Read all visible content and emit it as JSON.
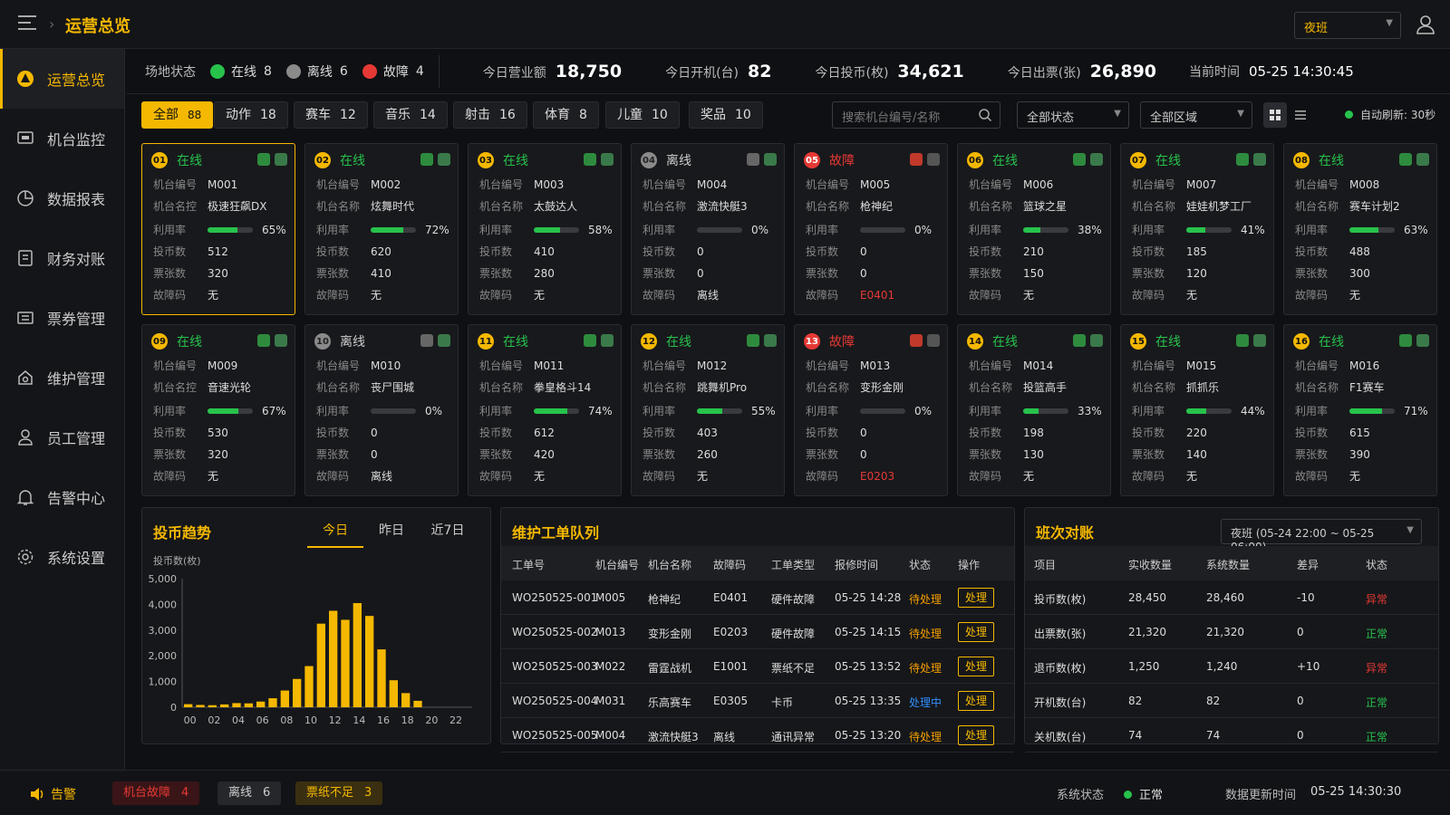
{
  "app": {
    "title": "运营总览",
    "shift": "夜班"
  },
  "colors": {
    "accent": "#f5b800",
    "online": "#27c24c",
    "fault": "#e53935",
    "offline": "#8a8a8a"
  },
  "sidebar": {
    "items": [
      {
        "label": "运营总览",
        "icon": "dashboard-icon"
      },
      {
        "label": "机台监控",
        "icon": "monitor-icon"
      },
      {
        "label": "数据报表",
        "icon": "report-icon"
      },
      {
        "label": "财务对账",
        "icon": "finance-icon"
      },
      {
        "label": "票券管理",
        "icon": "ticket-icon"
      },
      {
        "label": "维护管理",
        "icon": "maintenance-icon"
      },
      {
        "label": "员工管理",
        "icon": "user-icon"
      },
      {
        "label": "告警中心",
        "icon": "bell-icon"
      },
      {
        "label": "系统设置",
        "icon": "gear-icon"
      }
    ]
  },
  "status": {
    "label": "场地状态",
    "online_label": "在线",
    "online": "8",
    "offline_label": "离线",
    "offline": "6",
    "fault_label": "故障",
    "fault": "4"
  },
  "kpis": [
    {
      "label": "今日营业额",
      "value": "18,750"
    },
    {
      "label": "今日开机(台)",
      "value": "82"
    },
    {
      "label": "今日投币(枚)",
      "value": "34,621"
    },
    {
      "label": "今日出票(张)",
      "value": "26,890"
    }
  ],
  "time": {
    "label": "当前时间",
    "value": "05-25 14:30:45"
  },
  "filters": {
    "categories": [
      {
        "label": "全部",
        "count": "88"
      },
      {
        "label": "动作",
        "count": "18"
      },
      {
        "label": "赛车",
        "count": "12"
      },
      {
        "label": "音乐",
        "count": "14"
      },
      {
        "label": "射击",
        "count": "16"
      },
      {
        "label": "体育",
        "count": "8"
      },
      {
        "label": "儿童",
        "count": "10"
      },
      {
        "label": "奖品",
        "count": "10"
      }
    ],
    "search_placeholder": "搜索机台编号/名称",
    "status_select": "全部状态",
    "area_select": "全部区域",
    "auto_refresh": "自动刷新: 30秒"
  },
  "card_labels": {
    "id": "机台编号",
    "name": "机台名称",
    "name_alt": "机台名控",
    "util": "利用率",
    "coins": "投币数",
    "tickets": "票张数",
    "fault": "故障码"
  },
  "machines": [
    {
      "no": "01",
      "status": "在线",
      "state": "online",
      "id": "M001",
      "name": "极速狂飙DX",
      "util": 65,
      "util_text": "65%",
      "coins": "512",
      "tickets": "320",
      "fault": "无"
    },
    {
      "no": "02",
      "status": "在线",
      "state": "online",
      "id": "M002",
      "name": "炫舞时代",
      "util": 72,
      "util_text": "72%",
      "coins": "620",
      "tickets": "410",
      "fault": "无"
    },
    {
      "no": "03",
      "status": "在线",
      "state": "online",
      "id": "M003",
      "name": "太鼓达人",
      "util": 58,
      "util_text": "58%",
      "coins": "410",
      "tickets": "280",
      "fault": "无"
    },
    {
      "no": "04",
      "status": "离线",
      "state": "offline",
      "id": "M004",
      "name": "激流快艇3",
      "util": 0,
      "util_text": "0%",
      "coins": "0",
      "tickets": "0",
      "fault": "离线"
    },
    {
      "no": "05",
      "status": "故障",
      "state": "fault",
      "id": "M005",
      "name": "枪神纪",
      "util": 0,
      "util_text": "0%",
      "coins": "0",
      "tickets": "0",
      "fault": "E0401"
    },
    {
      "no": "06",
      "status": "在线",
      "state": "online",
      "id": "M006",
      "name": "篮球之星",
      "util": 38,
      "util_text": "38%",
      "coins": "210",
      "tickets": "150",
      "fault": "无"
    },
    {
      "no": "07",
      "status": "在线",
      "state": "online",
      "id": "M007",
      "name": "娃娃机梦工厂",
      "util": 41,
      "util_text": "41%",
      "coins": "185",
      "tickets": "120",
      "fault": "无"
    },
    {
      "no": "08",
      "status": "在线",
      "state": "online",
      "id": "M008",
      "name": "赛车计划2",
      "util": 63,
      "util_text": "63%",
      "coins": "488",
      "tickets": "300",
      "fault": "无"
    },
    {
      "no": "09",
      "status": "在线",
      "state": "online",
      "id": "M009",
      "name": "音速光轮",
      "util": 67,
      "util_text": "67%",
      "coins": "530",
      "tickets": "320",
      "fault": "无"
    },
    {
      "no": "10",
      "status": "离线",
      "state": "offline",
      "id": "M010",
      "name": "丧尸围城",
      "util": 0,
      "util_text": "0%",
      "coins": "0",
      "tickets": "0",
      "fault": "离线"
    },
    {
      "no": "11",
      "status": "在线",
      "state": "online",
      "id": "M011",
      "name": "拳皇格斗14",
      "util": 74,
      "util_text": "74%",
      "coins": "612",
      "tickets": "420",
      "fault": "无"
    },
    {
      "no": "12",
      "status": "在线",
      "state": "online",
      "id": "M012",
      "name": "跳舞机Pro",
      "util": 55,
      "util_text": "55%",
      "coins": "403",
      "tickets": "260",
      "fault": "无"
    },
    {
      "no": "13",
      "status": "故障",
      "state": "fault",
      "id": "M013",
      "name": "变形金刚",
      "util": 0,
      "util_text": "0%",
      "coins": "0",
      "tickets": "0",
      "fault": "E0203"
    },
    {
      "no": "14",
      "status": "在线",
      "state": "online",
      "id": "M014",
      "name": "投篮高手",
      "util": 33,
      "util_text": "33%",
      "coins": "198",
      "tickets": "130",
      "fault": "无"
    },
    {
      "no": "15",
      "status": "在线",
      "state": "online",
      "id": "M015",
      "name": "抓抓乐",
      "util": 44,
      "util_text": "44%",
      "coins": "220",
      "tickets": "140",
      "fault": "无"
    },
    {
      "no": "16",
      "status": "在线",
      "state": "online",
      "id": "M016",
      "name": "F1赛车",
      "util": 71,
      "util_text": "71%",
      "coins": "615",
      "tickets": "390",
      "fault": "无"
    }
  ],
  "trend": {
    "title": "投币趋势",
    "tabs": [
      "今日",
      "昨日",
      "近7日"
    ]
  },
  "chart_data": {
    "type": "bar",
    "ylabel": "投币数(枚)",
    "ylim": [
      0,
      5000
    ],
    "yticks": [
      "5,000",
      "4,000",
      "3,000",
      "2,000",
      "1,000",
      "0"
    ],
    "xticks": [
      "00",
      "02",
      "04",
      "06",
      "08",
      "10",
      "12",
      "14",
      "16",
      "18",
      "20",
      "22"
    ],
    "values": [
      120,
      90,
      80,
      110,
      160,
      150,
      220,
      350,
      650,
      1100,
      1600,
      3250,
      3750,
      3400,
      4050,
      3550,
      2250,
      1050,
      550,
      250,
      0,
      0,
      0,
      0
    ],
    "color": "#f5b800",
    "grid": false
  },
  "workorders": {
    "title": "维护工单队列",
    "headers": [
      "工单号",
      "机台编号",
      "机台名称",
      "故障码",
      "工单类型",
      "报修时间",
      "状态",
      "操作"
    ],
    "rows": [
      {
        "id": "WO250525-001",
        "mid": "M005",
        "name": "枪神纪",
        "code": "E0401",
        "type": "硬件故障",
        "time": "05-25 14:28",
        "status": "待处理",
        "cls": "orange",
        "action": "处理"
      },
      {
        "id": "WO250525-002",
        "mid": "M013",
        "name": "变形金刚",
        "code": "E0203",
        "type": "硬件故障",
        "time": "05-25 14:15",
        "status": "待处理",
        "cls": "orange",
        "action": "处理"
      },
      {
        "id": "WO250525-003",
        "mid": "M022",
        "name": "雷霆战机",
        "code": "E1001",
        "type": "票纸不足",
        "time": "05-25 13:52",
        "status": "待处理",
        "cls": "orange",
        "action": "处理"
      },
      {
        "id": "WO250525-004",
        "mid": "M031",
        "name": "乐高赛车",
        "code": "E0305",
        "type": "卡币",
        "time": "05-25 13:35",
        "status": "处理中",
        "cls": "blue",
        "action": "处理"
      },
      {
        "id": "WO250525-005",
        "mid": "M004",
        "name": "激流快艇3",
        "code": "离线",
        "type": "通讯异常",
        "time": "05-25 13:20",
        "status": "待处理",
        "cls": "orange",
        "action": "处理"
      }
    ]
  },
  "recon": {
    "title": "班次对账",
    "shift_select": "夜班 (05-24 22:00 ~ 05-25 06:00)",
    "headers": [
      "项目",
      "实收数量",
      "系统数量",
      "差异",
      "状态"
    ],
    "rows": [
      {
        "item": "投币数(枚)",
        "actual": "28,450",
        "system": "28,460",
        "diff": "-10",
        "status": "异常",
        "cls": "red"
      },
      {
        "item": "出票数(张)",
        "actual": "21,320",
        "system": "21,320",
        "diff": "0",
        "status": "正常",
        "cls": "green"
      },
      {
        "item": "退币数(枚)",
        "actual": "1,250",
        "system": "1,240",
        "diff": "+10",
        "status": "异常",
        "cls": "red"
      },
      {
        "item": "开机数(台)",
        "actual": "82",
        "system": "82",
        "diff": "0",
        "status": "正常",
        "cls": "green"
      },
      {
        "item": "关机数(台)",
        "actual": "74",
        "system": "74",
        "diff": "0",
        "status": "正常",
        "cls": "green"
      }
    ]
  },
  "footer": {
    "alarm": "告警",
    "fault_label": "机台故障",
    "fault": "4",
    "offline_label": "离线",
    "offline": "6",
    "paper_label": "票纸不足",
    "paper": "3",
    "sys_label": "系统状态",
    "sys_value": "正常",
    "update_label": "数据更新时间",
    "update_value": "05-25 14:30:30"
  }
}
